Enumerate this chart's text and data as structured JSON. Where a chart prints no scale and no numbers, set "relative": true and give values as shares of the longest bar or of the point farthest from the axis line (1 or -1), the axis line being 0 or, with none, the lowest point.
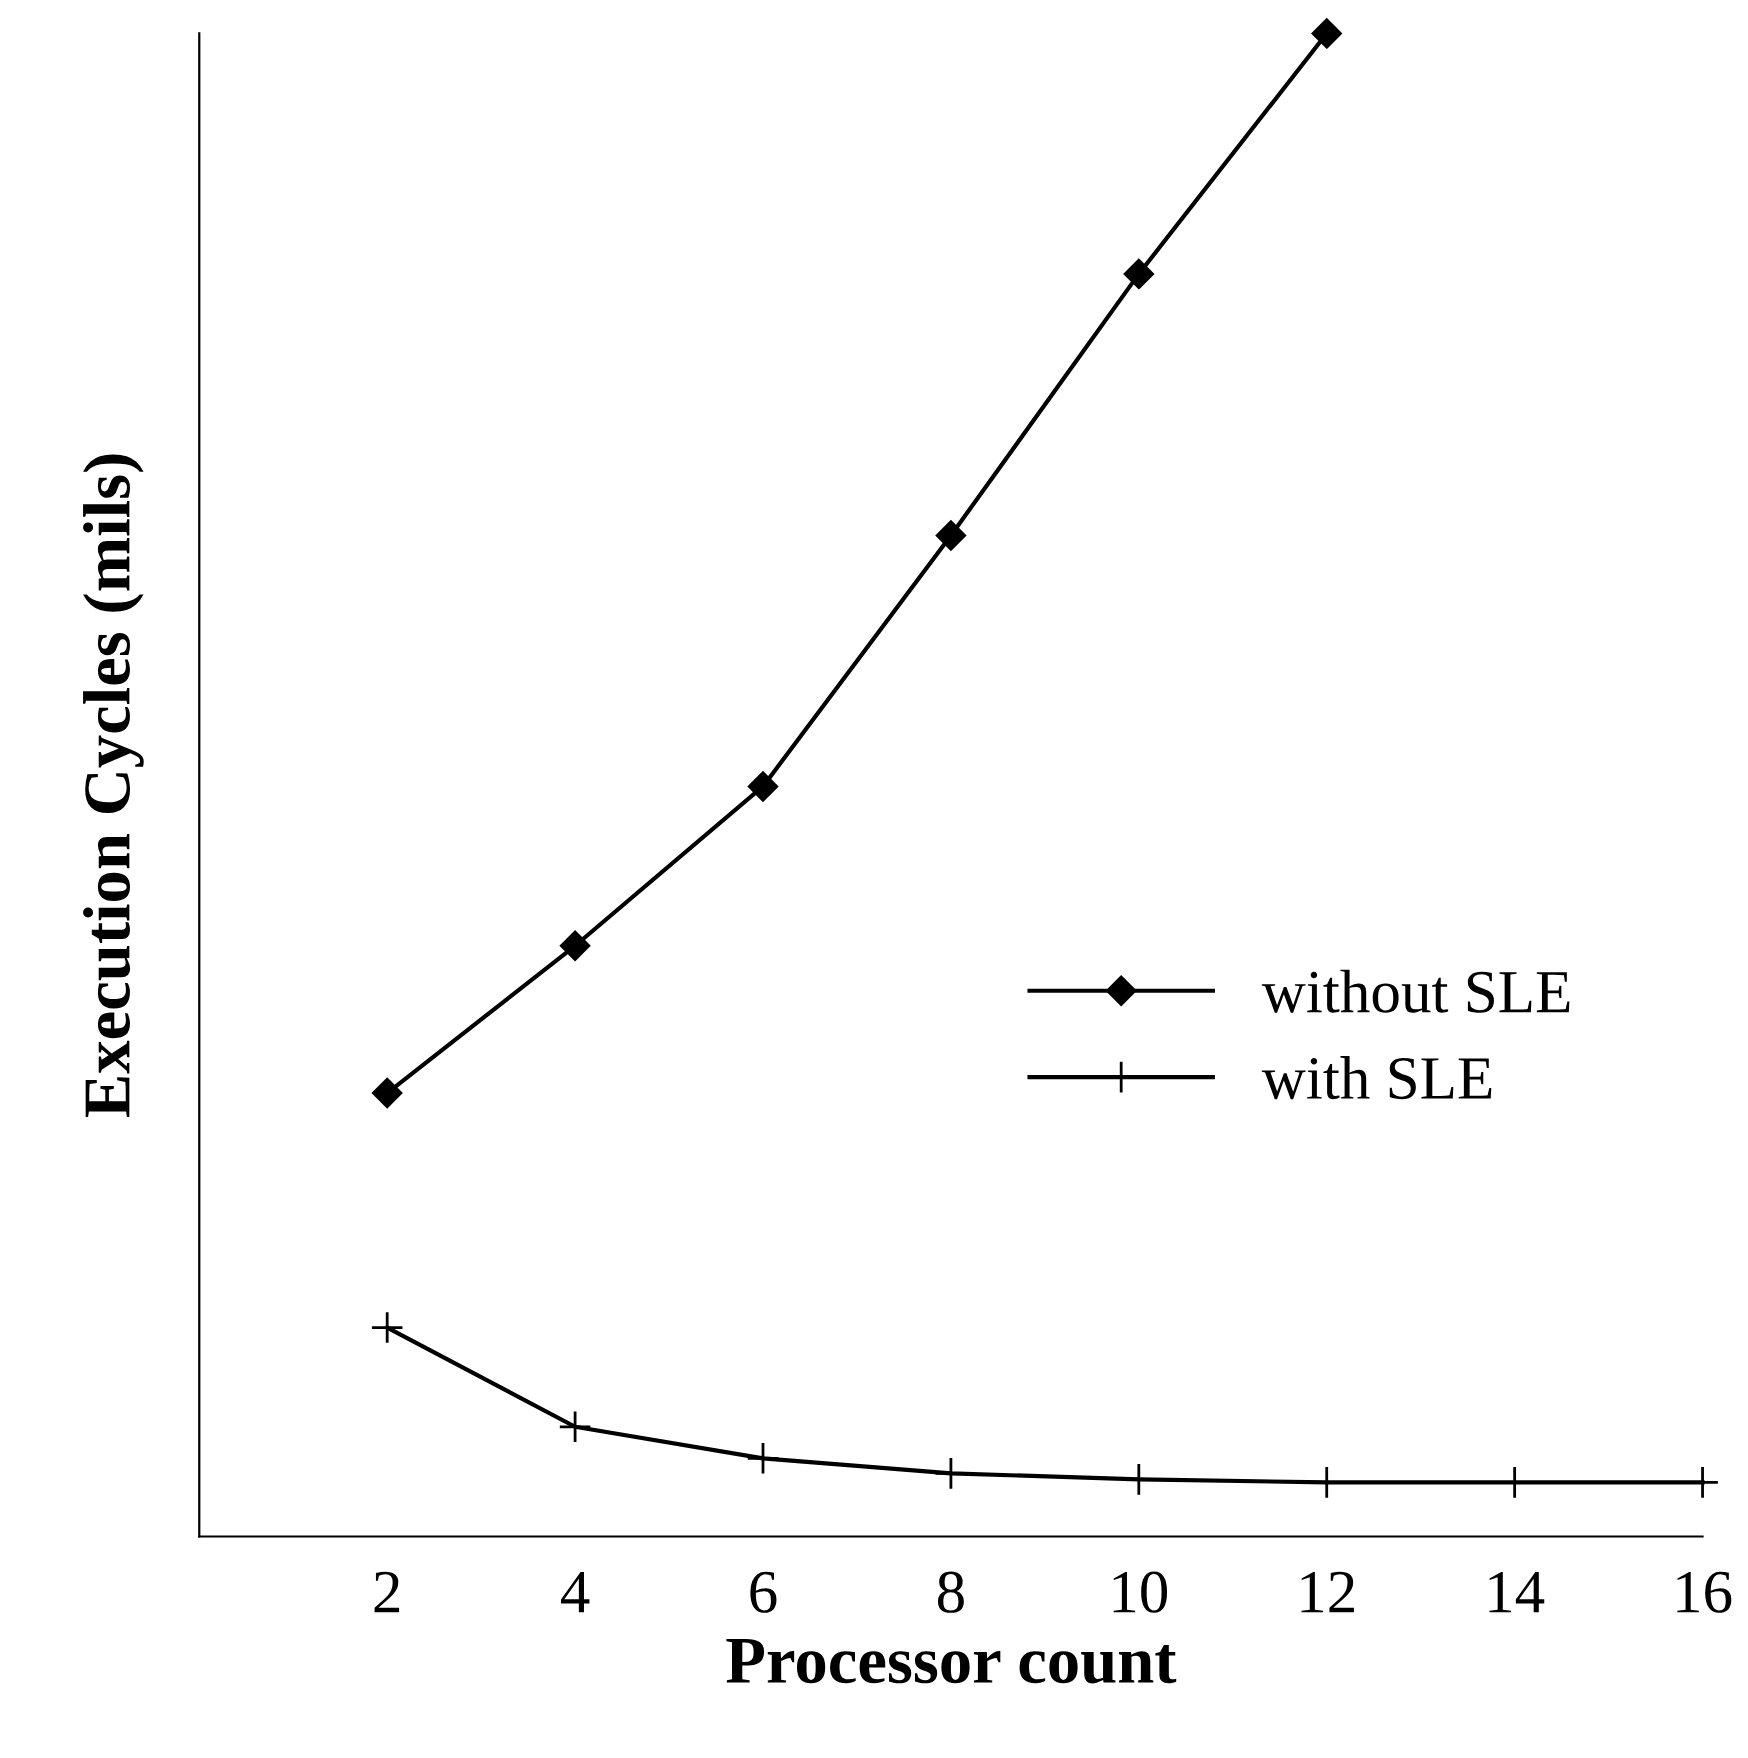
{
  "chart_data": {
    "type": "line",
    "xlabel": "Processor count",
    "ylabel": "Execution Cycles (mils)",
    "relative": true,
    "xlim": [
      0,
      16
    ],
    "xticks": [
      2,
      4,
      6,
      8,
      10,
      12,
      14,
      16
    ],
    "legend": "right",
    "grid": false,
    "series": [
      {
        "name": "without SLE",
        "color": "#000000",
        "marker": "diamond",
        "x": [
          2,
          4,
          6,
          8,
          10,
          12
        ],
        "values": [
          0.295,
          0.393,
          0.499,
          0.666,
          0.84,
          1
        ]
      },
      {
        "name": "with SLE",
        "color": "#000000",
        "marker": "cross",
        "x": [
          2,
          4,
          6,
          8,
          10,
          12,
          14,
          16
        ],
        "values": [
          0.139,
          0.073,
          0.052,
          0.042,
          0.038,
          0.036,
          0.036,
          0.036
        ]
      }
    ]
  }
}
